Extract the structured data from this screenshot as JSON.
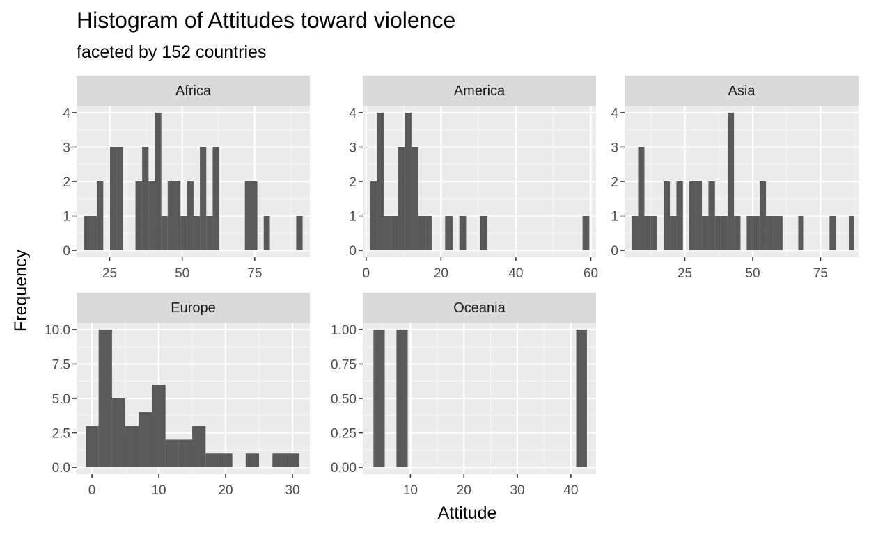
{
  "chart_data": {
    "type": "bar",
    "title": "Histogram of Attitudes toward violence",
    "subtitle": "faceted by 152 countries",
    "xlabel": "Attitude",
    "ylabel": "Frequency",
    "colors": {
      "bar": "#595959",
      "panel": "#ebebeb",
      "grid_major": "#ffffff",
      "grid_minor": "#f5f5f5",
      "strip": "#d9d9d9"
    },
    "facets": [
      {
        "name": "Africa",
        "xlim": [
          13.6,
          94.0
        ],
        "ylim": [
          -0.2,
          4.2
        ],
        "xticks": [
          25,
          50,
          75
        ],
        "yticks": [
          0,
          1,
          2,
          3,
          4
        ],
        "ytick_labels": [
          "0",
          "1",
          "2",
          "3",
          "4"
        ],
        "bins": [
          {
            "x0": 16.2,
            "x1": 18.4,
            "value": 1
          },
          {
            "x0": 18.4,
            "x1": 20.6,
            "value": 1
          },
          {
            "x0": 20.6,
            "x1": 22.8,
            "value": 2
          },
          {
            "x0": 25.1,
            "x1": 27.3,
            "value": 3
          },
          {
            "x0": 27.3,
            "x1": 29.5,
            "value": 3
          },
          {
            "x0": 33.9,
            "x1": 36.2,
            "value": 2
          },
          {
            "x0": 36.2,
            "x1": 38.4,
            "value": 3
          },
          {
            "x0": 38.4,
            "x1": 40.6,
            "value": 2
          },
          {
            "x0": 40.6,
            "x1": 42.8,
            "value": 4
          },
          {
            "x0": 42.8,
            "x1": 45.0,
            "value": 1
          },
          {
            "x0": 45.0,
            "x1": 47.2,
            "value": 2
          },
          {
            "x0": 47.2,
            "x1": 49.4,
            "value": 2
          },
          {
            "x0": 49.4,
            "x1": 51.7,
            "value": 1
          },
          {
            "x0": 51.7,
            "x1": 53.9,
            "value": 2
          },
          {
            "x0": 53.9,
            "x1": 56.1,
            "value": 1
          },
          {
            "x0": 56.1,
            "x1": 58.3,
            "value": 3
          },
          {
            "x0": 58.3,
            "x1": 60.5,
            "value": 1
          },
          {
            "x0": 60.5,
            "x1": 62.7,
            "value": 3
          },
          {
            "x0": 71.6,
            "x1": 75.9,
            "value": 2
          },
          {
            "x0": 78.1,
            "x1": 80.2,
            "value": 1
          },
          {
            "x0": 89.3,
            "x1": 91.5,
            "value": 1
          }
        ]
      },
      {
        "name": "America",
        "xlim": [
          -0.9,
          61.4
        ],
        "ylim": [
          -0.2,
          4.2
        ],
        "xticks": [
          0,
          20,
          40,
          60
        ],
        "yticks": [
          0,
          1,
          2,
          3,
          4
        ],
        "ytick_labels": [
          "0",
          "1",
          "2",
          "3",
          "4"
        ],
        "bins": [
          {
            "x0": 1.1,
            "x1": 2.9,
            "value": 2
          },
          {
            "x0": 2.9,
            "x1": 4.7,
            "value": 4
          },
          {
            "x0": 4.7,
            "x1": 6.7,
            "value": 1
          },
          {
            "x0": 6.7,
            "x1": 8.5,
            "value": 1
          },
          {
            "x0": 8.5,
            "x1": 10.3,
            "value": 3
          },
          {
            "x0": 10.3,
            "x1": 12.1,
            "value": 4
          },
          {
            "x0": 12.1,
            "x1": 13.9,
            "value": 3
          },
          {
            "x0": 13.9,
            "x1": 15.9,
            "value": 1
          },
          {
            "x0": 15.9,
            "x1": 17.5,
            "value": 1
          },
          {
            "x0": 21.1,
            "x1": 23.1,
            "value": 1
          },
          {
            "x0": 24.9,
            "x1": 26.7,
            "value": 1
          },
          {
            "x0": 30.4,
            "x1": 32.4,
            "value": 1
          },
          {
            "x0": 57.8,
            "x1": 59.6,
            "value": 1
          }
        ]
      },
      {
        "name": "Asia",
        "xlim": [
          2.8,
          89.0
        ],
        "ylim": [
          -0.2,
          4.2
        ],
        "xticks": [
          25,
          50,
          75
        ],
        "yticks": [
          0,
          1,
          2,
          3,
          4
        ],
        "ytick_labels": [
          "0",
          "1",
          "2",
          "3",
          "4"
        ],
        "bins": [
          {
            "x0": 5.4,
            "x1": 7.8,
            "value": 1
          },
          {
            "x0": 7.8,
            "x1": 10.1,
            "value": 3
          },
          {
            "x0": 10.1,
            "x1": 12.5,
            "value": 1
          },
          {
            "x0": 12.5,
            "x1": 14.8,
            "value": 1
          },
          {
            "x0": 17.2,
            "x1": 19.5,
            "value": 2
          },
          {
            "x0": 19.5,
            "x1": 21.9,
            "value": 1
          },
          {
            "x0": 21.9,
            "x1": 24.3,
            "value": 2
          },
          {
            "x0": 26.6,
            "x1": 29.0,
            "value": 2
          },
          {
            "x0": 29.0,
            "x1": 31.3,
            "value": 2
          },
          {
            "x0": 31.3,
            "x1": 33.7,
            "value": 1
          },
          {
            "x0": 33.7,
            "x1": 36.1,
            "value": 2
          },
          {
            "x0": 36.1,
            "x1": 38.4,
            "value": 1
          },
          {
            "x0": 38.4,
            "x1": 40.8,
            "value": 1
          },
          {
            "x0": 40.8,
            "x1": 43.1,
            "value": 4
          },
          {
            "x0": 43.1,
            "x1": 45.5,
            "value": 1
          },
          {
            "x0": 47.8,
            "x1": 50.2,
            "value": 1
          },
          {
            "x0": 50.2,
            "x1": 52.6,
            "value": 1
          },
          {
            "x0": 52.6,
            "x1": 54.9,
            "value": 2
          },
          {
            "x0": 54.9,
            "x1": 57.3,
            "value": 1
          },
          {
            "x0": 57.3,
            "x1": 61.0,
            "value": 1
          },
          {
            "x0": 66.8,
            "x1": 68.6,
            "value": 1
          },
          {
            "x0": 78.3,
            "x1": 80.6,
            "value": 1
          },
          {
            "x0": 85.4,
            "x1": 87.3,
            "value": 1
          }
        ]
      },
      {
        "name": "Europe",
        "xlim": [
          -2.3,
          32.6
        ],
        "ylim": [
          -0.5,
          10.5
        ],
        "xticks": [
          0,
          10,
          20,
          30
        ],
        "yticks": [
          0,
          2.5,
          5,
          7.5,
          10
        ],
        "ytick_labels": [
          "0.0",
          "2.5",
          "5.0",
          "7.5",
          "10.0"
        ],
        "bins": [
          {
            "x0": -0.9,
            "x1": 1.0,
            "value": 3
          },
          {
            "x0": 1.0,
            "x1": 3.0,
            "value": 10
          },
          {
            "x0": 3.0,
            "x1": 5.0,
            "value": 5
          },
          {
            "x0": 5.0,
            "x1": 7.0,
            "value": 3
          },
          {
            "x0": 7.0,
            "x1": 9.0,
            "value": 4
          },
          {
            "x0": 9.0,
            "x1": 11.0,
            "value": 6
          },
          {
            "x0": 11.0,
            "x1": 13.0,
            "value": 2
          },
          {
            "x0": 13.0,
            "x1": 15.0,
            "value": 2
          },
          {
            "x0": 15.0,
            "x1": 17.0,
            "value": 3
          },
          {
            "x0": 17.0,
            "x1": 19.0,
            "value": 1
          },
          {
            "x0": 19.0,
            "x1": 21.0,
            "value": 1
          },
          {
            "x0": 23.0,
            "x1": 25.0,
            "value": 1
          },
          {
            "x0": 27.0,
            "x1": 29.0,
            "value": 1
          },
          {
            "x0": 29.0,
            "x1": 31.0,
            "value": 1
          }
        ]
      },
      {
        "name": "Oceania",
        "xlim": [
          1.1,
          44.7
        ],
        "ylim": [
          -0.05,
          1.05
        ],
        "xticks": [
          10,
          20,
          30,
          40
        ],
        "yticks": [
          0,
          0.25,
          0.5,
          0.75,
          1
        ],
        "ytick_labels": [
          "0.00",
          "0.25",
          "0.50",
          "0.75",
          "1.00"
        ],
        "bins": [
          {
            "x0": 3.1,
            "x1": 5.2,
            "value": 1
          },
          {
            "x0": 7.4,
            "x1": 9.5,
            "value": 1
          },
          {
            "x0": 41.0,
            "x1": 43.0,
            "value": 1
          }
        ]
      }
    ]
  }
}
